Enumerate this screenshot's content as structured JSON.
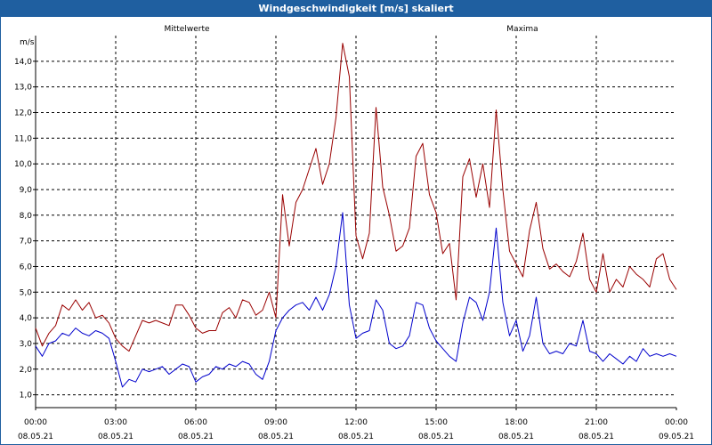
{
  "window": {
    "title": "Windgeschwindigkeit [m/s] skaliert"
  },
  "chart_data": {
    "type": "line",
    "title": "Windgeschwindigkeit [m/s] skaliert",
    "ylabel": "m/s",
    "xlabel": "",
    "grid": true,
    "ylim": [
      0.5,
      15.0
    ],
    "xlim_hours": [
      0,
      24
    ],
    "y_ticks": [
      "1,0",
      "2,0",
      "3,0",
      "4,0",
      "5,0",
      "6,0",
      "7,0",
      "8,0",
      "9,0",
      "10,0",
      "11,0",
      "12,0",
      "13,0",
      "14,0"
    ],
    "x_ticks": [
      {
        "time": "00:00",
        "date": "08.05.21"
      },
      {
        "time": "03:00",
        "date": "08.05.21"
      },
      {
        "time": "06:00",
        "date": "08.05.21"
      },
      {
        "time": "09:00",
        "date": "08.05.21"
      },
      {
        "time": "12:00",
        "date": "08.05.21"
      },
      {
        "time": "15:00",
        "date": "08.05.21"
      },
      {
        "time": "18:00",
        "date": "08.05.21"
      },
      {
        "time": "21:00",
        "date": "08.05.21"
      },
      {
        "time": "00:00",
        "date": "09.05.21"
      }
    ],
    "x_hours": [
      0,
      0.25,
      0.5,
      0.75,
      1,
      1.25,
      1.5,
      1.75,
      2,
      2.25,
      2.5,
      2.75,
      3,
      3.25,
      3.5,
      3.75,
      4,
      4.25,
      4.5,
      4.75,
      5,
      5.25,
      5.5,
      5.75,
      6,
      6.25,
      6.5,
      6.75,
      7,
      7.25,
      7.5,
      7.75,
      8,
      8.25,
      8.5,
      8.75,
      9,
      9.25,
      9.5,
      9.75,
      10,
      10.25,
      10.5,
      10.75,
      11,
      11.25,
      11.5,
      11.75,
      12,
      12.25,
      12.5,
      12.75,
      13,
      13.25,
      13.5,
      13.75,
      14,
      14.25,
      14.5,
      14.75,
      15,
      15.25,
      15.5,
      15.75,
      16,
      16.25,
      16.5,
      16.75,
      17,
      17.25,
      17.5,
      17.75,
      18,
      18.25,
      18.5,
      18.75,
      19,
      19.25,
      19.5,
      19.75,
      20,
      20.25,
      20.5,
      20.75,
      21,
      21.25,
      21.5,
      21.75,
      22,
      22.25,
      22.5,
      22.75,
      23,
      23.25,
      23.5,
      23.75,
      24
    ],
    "series": [
      {
        "name": "Mittelwerte",
        "color": "#0000cc",
        "values": [
          2.9,
          2.5,
          3.0,
          3.1,
          3.4,
          3.3,
          3.6,
          3.4,
          3.3,
          3.5,
          3.4,
          3.2,
          2.3,
          1.3,
          1.6,
          1.5,
          2.0,
          1.9,
          2.0,
          2.1,
          1.8,
          2.0,
          2.2,
          2.1,
          1.5,
          1.7,
          1.8,
          2.1,
          2.0,
          2.2,
          2.1,
          2.3,
          2.2,
          1.8,
          1.6,
          2.3,
          3.5,
          4.0,
          4.3,
          4.5,
          4.6,
          4.3,
          4.8,
          4.3,
          4.9,
          6.0,
          8.1,
          4.5,
          3.2,
          3.4,
          3.5,
          4.7,
          4.3,
          3.0,
          2.8,
          2.9,
          3.3,
          4.6,
          4.5,
          3.6,
          3.1,
          2.8,
          2.5,
          2.3,
          3.8,
          4.8,
          4.6,
          3.9,
          5.0,
          7.5,
          4.6,
          3.3,
          3.9,
          2.7,
          3.3,
          4.8,
          3.0,
          2.6,
          2.7,
          2.6,
          3.0,
          2.9,
          3.9,
          2.7,
          2.6,
          2.3,
          2.6,
          2.4,
          2.2,
          2.5,
          2.3,
          2.8,
          2.5,
          2.6,
          2.5,
          2.6,
          2.5
        ]
      },
      {
        "name": "Maxima",
        "color": "#990000",
        "values": [
          3.6,
          2.9,
          3.4,
          3.7,
          4.5,
          4.3,
          4.7,
          4.3,
          4.6,
          4.0,
          4.1,
          3.8,
          3.2,
          2.9,
          2.7,
          3.3,
          3.9,
          3.8,
          3.9,
          3.8,
          3.7,
          4.5,
          4.5,
          4.1,
          3.6,
          3.4,
          3.5,
          3.5,
          4.2,
          4.4,
          4.0,
          4.7,
          4.6,
          4.1,
          4.3,
          5.0,
          4.0,
          8.8,
          6.8,
          8.5,
          9.0,
          9.8,
          10.6,
          9.2,
          10.0,
          11.8,
          14.7,
          13.4,
          7.2,
          6.3,
          7.3,
          12.2,
          9.1,
          8.0,
          6.6,
          6.8,
          7.5,
          10.3,
          10.8,
          8.8,
          8.1,
          6.5,
          6.9,
          4.7,
          9.5,
          10.2,
          8.7,
          10.0,
          8.3,
          12.1,
          9.0,
          6.6,
          6.1,
          5.6,
          7.4,
          8.5,
          6.7,
          5.9,
          6.1,
          5.8,
          5.6,
          6.2,
          7.3,
          5.5,
          5.0,
          6.5,
          5.0,
          5.5,
          5.2,
          6.0,
          5.7,
          5.5,
          5.2,
          6.3,
          6.5,
          5.5,
          5.1
        ]
      }
    ]
  }
}
